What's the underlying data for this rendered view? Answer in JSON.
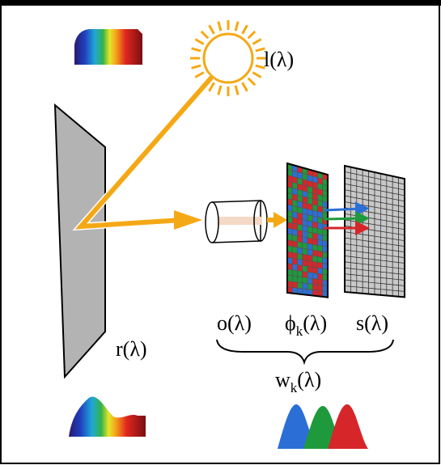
{
  "labels": {
    "illuminant": {
      "base": "l",
      "rest": "(λ)"
    },
    "reflectance": {
      "base": "r",
      "rest": "(λ)"
    },
    "optics": {
      "base": "o",
      "rest": "(λ)"
    },
    "filter": {
      "base": "ϕ",
      "sub": "k",
      "rest": "(λ)"
    },
    "sensor": {
      "base": "s",
      "rest": "(λ)"
    },
    "response": {
      "base": "w",
      "sub": "k",
      "rest": "(λ)"
    }
  }
}
